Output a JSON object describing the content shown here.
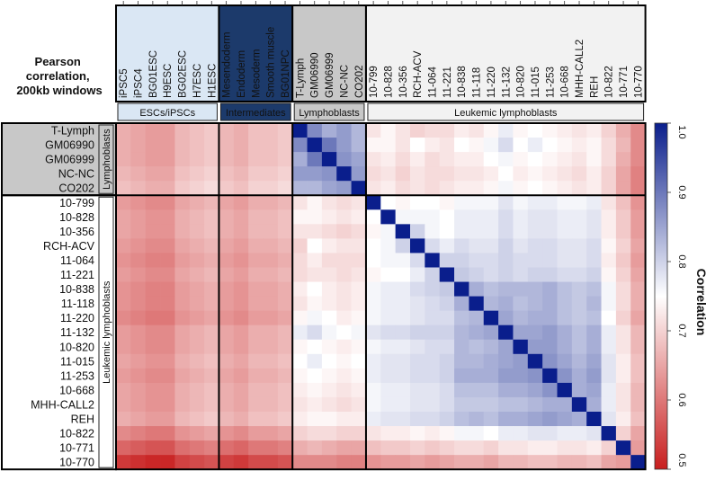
{
  "chart_data": {
    "type": "heatmap",
    "title": "Pearson correlation, 200kb windows",
    "title_lines": [
      "Pearson",
      "correlation,",
      "200kb windows"
    ],
    "colorbar": {
      "label": "Correlation",
      "range": [
        0.5,
        1.0
      ],
      "ticks": [
        "1.0",
        "0.9",
        "0.8",
        "0.7",
        "0.6",
        "0.5"
      ],
      "colors": {
        "low": "#c81e1e",
        "mid": "#ffffff",
        "high": "#0a1e8c"
      }
    },
    "columns": [
      "iPSC5",
      "iPSC4",
      "BG01ESC",
      "H9ESC",
      "BG02ESC",
      "H7ESC",
      "H1ESC",
      "Mesendoderm",
      "Endoderm",
      "Mesoderm",
      "Smooth muscle",
      "BG01NPC",
      "T-Lymph",
      "GM06990",
      "GM06999",
      "NC-NC",
      "CO202",
      "10-799",
      "10-828",
      "10-356",
      "RCH-ACV",
      "11-064",
      "11-221",
      "10-838",
      "11-118",
      "11-220",
      "11-132",
      "10-820",
      "11-015",
      "11-253",
      "10-668",
      "MHH-CALL2",
      "REH",
      "10-822",
      "10-771",
      "10-770"
    ],
    "column_groups": [
      {
        "label": "ESCs/iPSCs",
        "count": 7,
        "color": "#dae7f4",
        "text_color": "#111111"
      },
      {
        "label": "Intermediates",
        "count": 5,
        "color": "#1c3a6b",
        "text_color": "#ffffff"
      },
      {
        "label": "Lymphoblasts",
        "count": 5,
        "color": "#c8c8c8",
        "text_color": "#111111"
      },
      {
        "label": "Leukemic lymphoblasts",
        "count": 19,
        "color": "#f2f2f2",
        "text_color": "#111111"
      }
    ],
    "rows": [
      "T-Lymph",
      "GM06990",
      "GM06999",
      "NC-NC",
      "CO202",
      "10-799",
      "10-828",
      "10-356",
      "RCH-ACV",
      "11-064",
      "11-221",
      "10-838",
      "11-118",
      "11-220",
      "11-132",
      "10-820",
      "11-015",
      "11-253",
      "10-668",
      "MHH-CALL2",
      "REH",
      "10-822",
      "10-771",
      "10-770"
    ],
    "row_groups": [
      {
        "label": "Lymphoblasts",
        "count": 5,
        "color": "#c8c8c8"
      },
      {
        "label": "Leukemic lymphoblasts",
        "count": 19,
        "color": "#ffffff"
      }
    ],
    "values": [
      [
        0.66,
        0.65,
        0.64,
        0.64,
        0.67,
        0.68,
        0.69,
        0.67,
        0.66,
        0.68,
        0.68,
        0.69,
        1,
        0.88,
        0.84,
        0.86,
        0.83,
        0.72,
        0.74,
        0.72,
        0.7,
        0.71,
        0.71,
        0.73,
        0.72,
        0.74,
        0.77,
        0.74,
        0.75,
        0.74,
        0.73,
        0.72,
        0.73,
        0.7,
        0.66,
        0.62
      ],
      [
        0.66,
        0.65,
        0.64,
        0.64,
        0.67,
        0.68,
        0.69,
        0.67,
        0.66,
        0.68,
        0.68,
        0.69,
        0.88,
        1,
        0.9,
        0.86,
        0.83,
        0.74,
        0.74,
        0.72,
        0.75,
        0.73,
        0.72,
        0.75,
        0.74,
        0.76,
        0.79,
        0.75,
        0.77,
        0.75,
        0.74,
        0.73,
        0.74,
        0.71,
        0.67,
        0.62
      ],
      [
        0.66,
        0.65,
        0.64,
        0.64,
        0.67,
        0.68,
        0.69,
        0.67,
        0.66,
        0.68,
        0.68,
        0.69,
        0.84,
        0.9,
        1,
        0.87,
        0.85,
        0.72,
        0.73,
        0.71,
        0.73,
        0.71,
        0.72,
        0.73,
        0.73,
        0.75,
        0.76,
        0.74,
        0.75,
        0.74,
        0.73,
        0.72,
        0.74,
        0.71,
        0.66,
        0.62
      ],
      [
        0.67,
        0.66,
        0.65,
        0.65,
        0.68,
        0.69,
        0.7,
        0.68,
        0.67,
        0.69,
        0.69,
        0.7,
        0.86,
        0.86,
        0.87,
        1,
        0.86,
        0.71,
        0.72,
        0.7,
        0.72,
        0.71,
        0.71,
        0.72,
        0.72,
        0.73,
        0.75,
        0.73,
        0.74,
        0.73,
        0.72,
        0.71,
        0.73,
        0.7,
        0.65,
        0.61
      ],
      [
        0.68,
        0.67,
        0.66,
        0.66,
        0.69,
        0.7,
        0.71,
        0.69,
        0.68,
        0.7,
        0.7,
        0.71,
        0.83,
        0.83,
        0.85,
        0.86,
        1,
        0.72,
        0.73,
        0.71,
        0.72,
        0.71,
        0.72,
        0.73,
        0.73,
        0.74,
        0.76,
        0.74,
        0.75,
        0.74,
        0.73,
        0.72,
        0.73,
        0.7,
        0.65,
        0.61
      ],
      [
        0.64,
        0.63,
        0.62,
        0.62,
        0.65,
        0.66,
        0.67,
        0.65,
        0.64,
        0.66,
        0.66,
        0.67,
        0.72,
        0.74,
        0.72,
        0.71,
        0.72,
        1,
        0.75,
        0.74,
        0.75,
        0.75,
        0.74,
        0.76,
        0.76,
        0.76,
        0.78,
        0.76,
        0.77,
        0.77,
        0.76,
        0.76,
        0.77,
        0.72,
        0.68,
        0.63
      ],
      [
        0.65,
        0.64,
        0.63,
        0.63,
        0.66,
        0.67,
        0.68,
        0.66,
        0.65,
        0.67,
        0.67,
        0.68,
        0.74,
        0.74,
        0.73,
        0.72,
        0.73,
        0.75,
        1,
        0.76,
        0.76,
        0.76,
        0.75,
        0.77,
        0.77,
        0.77,
        0.79,
        0.77,
        0.78,
        0.78,
        0.77,
        0.77,
        0.78,
        0.73,
        0.69,
        0.64
      ],
      [
        0.65,
        0.64,
        0.63,
        0.63,
        0.66,
        0.67,
        0.68,
        0.66,
        0.65,
        0.67,
        0.67,
        0.68,
        0.72,
        0.72,
        0.71,
        0.7,
        0.71,
        0.74,
        0.76,
        1,
        0.8,
        0.76,
        0.75,
        0.77,
        0.77,
        0.77,
        0.79,
        0.77,
        0.78,
        0.78,
        0.77,
        0.77,
        0.78,
        0.73,
        0.69,
        0.64
      ],
      [
        0.64,
        0.63,
        0.62,
        0.62,
        0.65,
        0.66,
        0.67,
        0.65,
        0.64,
        0.66,
        0.66,
        0.67,
        0.7,
        0.75,
        0.73,
        0.72,
        0.72,
        0.75,
        0.76,
        0.8,
        1,
        0.79,
        0.77,
        0.79,
        0.78,
        0.78,
        0.8,
        0.78,
        0.79,
        0.79,
        0.78,
        0.78,
        0.79,
        0.74,
        0.7,
        0.65
      ],
      [
        0.63,
        0.62,
        0.61,
        0.61,
        0.64,
        0.65,
        0.66,
        0.64,
        0.63,
        0.65,
        0.65,
        0.66,
        0.71,
        0.73,
        0.71,
        0.71,
        0.71,
        0.75,
        0.76,
        0.76,
        0.79,
        1,
        0.8,
        0.8,
        0.79,
        0.79,
        0.8,
        0.79,
        0.79,
        0.79,
        0.78,
        0.78,
        0.79,
        0.73,
        0.69,
        0.64
      ],
      [
        0.64,
        0.63,
        0.62,
        0.62,
        0.65,
        0.66,
        0.67,
        0.65,
        0.64,
        0.66,
        0.66,
        0.67,
        0.71,
        0.72,
        0.72,
        0.71,
        0.72,
        0.74,
        0.75,
        0.75,
        0.77,
        0.8,
        1,
        0.81,
        0.8,
        0.79,
        0.8,
        0.79,
        0.8,
        0.8,
        0.79,
        0.79,
        0.8,
        0.74,
        0.7,
        0.65
      ],
      [
        0.63,
        0.62,
        0.61,
        0.61,
        0.64,
        0.65,
        0.66,
        0.64,
        0.63,
        0.65,
        0.65,
        0.66,
        0.73,
        0.75,
        0.73,
        0.72,
        0.73,
        0.76,
        0.77,
        0.77,
        0.79,
        0.8,
        0.81,
        1,
        0.84,
        0.82,
        0.83,
        0.83,
        0.83,
        0.84,
        0.82,
        0.81,
        0.82,
        0.76,
        0.71,
        0.66
      ],
      [
        0.63,
        0.62,
        0.61,
        0.61,
        0.64,
        0.65,
        0.66,
        0.64,
        0.63,
        0.65,
        0.65,
        0.66,
        0.72,
        0.74,
        0.73,
        0.72,
        0.73,
        0.76,
        0.77,
        0.77,
        0.78,
        0.79,
        0.8,
        0.84,
        1,
        0.83,
        0.84,
        0.82,
        0.83,
        0.84,
        0.82,
        0.81,
        0.83,
        0.76,
        0.71,
        0.66
      ],
      [
        0.62,
        0.61,
        0.6,
        0.6,
        0.63,
        0.64,
        0.65,
        0.63,
        0.62,
        0.64,
        0.64,
        0.65,
        0.74,
        0.76,
        0.75,
        0.73,
        0.74,
        0.76,
        0.77,
        0.77,
        0.78,
        0.79,
        0.79,
        0.82,
        0.83,
        1,
        0.85,
        0.83,
        0.84,
        0.84,
        0.82,
        0.81,
        0.82,
        0.75,
        0.7,
        0.65
      ],
      [
        0.64,
        0.63,
        0.62,
        0.62,
        0.65,
        0.66,
        0.67,
        0.65,
        0.64,
        0.66,
        0.66,
        0.67,
        0.77,
        0.79,
        0.76,
        0.75,
        0.76,
        0.78,
        0.79,
        0.79,
        0.8,
        0.8,
        0.8,
        0.83,
        0.84,
        0.85,
        1,
        0.85,
        0.85,
        0.86,
        0.84,
        0.82,
        0.84,
        0.77,
        0.72,
        0.67
      ],
      [
        0.64,
        0.63,
        0.62,
        0.62,
        0.65,
        0.66,
        0.67,
        0.65,
        0.64,
        0.66,
        0.66,
        0.67,
        0.74,
        0.75,
        0.74,
        0.73,
        0.74,
        0.76,
        0.77,
        0.77,
        0.78,
        0.79,
        0.79,
        0.83,
        0.82,
        0.83,
        0.85,
        1,
        0.86,
        0.86,
        0.84,
        0.82,
        0.84,
        0.77,
        0.72,
        0.67
      ],
      [
        0.65,
        0.64,
        0.63,
        0.63,
        0.66,
        0.67,
        0.68,
        0.66,
        0.65,
        0.67,
        0.67,
        0.68,
        0.75,
        0.77,
        0.75,
        0.74,
        0.75,
        0.77,
        0.78,
        0.78,
        0.79,
        0.79,
        0.8,
        0.83,
        0.83,
        0.84,
        0.85,
        0.86,
        1,
        0.87,
        0.85,
        0.83,
        0.85,
        0.78,
        0.73,
        0.68
      ],
      [
        0.64,
        0.63,
        0.62,
        0.62,
        0.65,
        0.66,
        0.67,
        0.65,
        0.64,
        0.66,
        0.66,
        0.67,
        0.74,
        0.75,
        0.74,
        0.73,
        0.74,
        0.77,
        0.78,
        0.78,
        0.79,
        0.79,
        0.8,
        0.84,
        0.84,
        0.84,
        0.86,
        0.86,
        0.87,
        1,
        0.87,
        0.84,
        0.86,
        0.78,
        0.73,
        0.68
      ],
      [
        0.65,
        0.64,
        0.63,
        0.63,
        0.66,
        0.67,
        0.68,
        0.66,
        0.65,
        0.67,
        0.67,
        0.68,
        0.73,
        0.74,
        0.73,
        0.72,
        0.73,
        0.76,
        0.77,
        0.77,
        0.78,
        0.78,
        0.79,
        0.82,
        0.82,
        0.82,
        0.84,
        0.84,
        0.85,
        0.87,
        1,
        0.84,
        0.85,
        0.77,
        0.72,
        0.67
      ],
      [
        0.65,
        0.64,
        0.63,
        0.63,
        0.66,
        0.67,
        0.68,
        0.66,
        0.65,
        0.67,
        0.67,
        0.68,
        0.72,
        0.73,
        0.72,
        0.71,
        0.72,
        0.76,
        0.77,
        0.77,
        0.78,
        0.78,
        0.79,
        0.81,
        0.81,
        0.81,
        0.82,
        0.82,
        0.83,
        0.84,
        0.84,
        1,
        0.84,
        0.77,
        0.72,
        0.67
      ],
      [
        0.66,
        0.65,
        0.64,
        0.64,
        0.67,
        0.68,
        0.69,
        0.67,
        0.66,
        0.68,
        0.68,
        0.69,
        0.73,
        0.74,
        0.74,
        0.73,
        0.73,
        0.77,
        0.78,
        0.78,
        0.79,
        0.79,
        0.8,
        0.82,
        0.83,
        0.82,
        0.84,
        0.84,
        0.85,
        0.86,
        0.85,
        0.84,
        1,
        0.78,
        0.73,
        0.68
      ],
      [
        0.62,
        0.61,
        0.6,
        0.6,
        0.63,
        0.64,
        0.65,
        0.63,
        0.62,
        0.64,
        0.64,
        0.65,
        0.7,
        0.71,
        0.71,
        0.7,
        0.7,
        0.72,
        0.73,
        0.73,
        0.74,
        0.73,
        0.74,
        0.76,
        0.76,
        0.75,
        0.77,
        0.77,
        0.78,
        0.78,
        0.77,
        0.77,
        0.78,
        1,
        0.7,
        0.65
      ],
      [
        0.58,
        0.57,
        0.56,
        0.56,
        0.59,
        0.6,
        0.61,
        0.59,
        0.58,
        0.6,
        0.6,
        0.61,
        0.66,
        0.67,
        0.66,
        0.65,
        0.65,
        0.68,
        0.69,
        0.69,
        0.7,
        0.69,
        0.7,
        0.71,
        0.71,
        0.7,
        0.72,
        0.72,
        0.73,
        0.73,
        0.72,
        0.72,
        0.73,
        0.7,
        1,
        0.64
      ],
      [
        0.53,
        0.52,
        0.51,
        0.51,
        0.54,
        0.55,
        0.56,
        0.54,
        0.53,
        0.55,
        0.55,
        0.56,
        0.62,
        0.62,
        0.62,
        0.61,
        0.61,
        0.63,
        0.64,
        0.64,
        0.65,
        0.64,
        0.65,
        0.66,
        0.66,
        0.65,
        0.67,
        0.67,
        0.68,
        0.68,
        0.67,
        0.67,
        0.68,
        0.65,
        0.64,
        1
      ]
    ]
  }
}
